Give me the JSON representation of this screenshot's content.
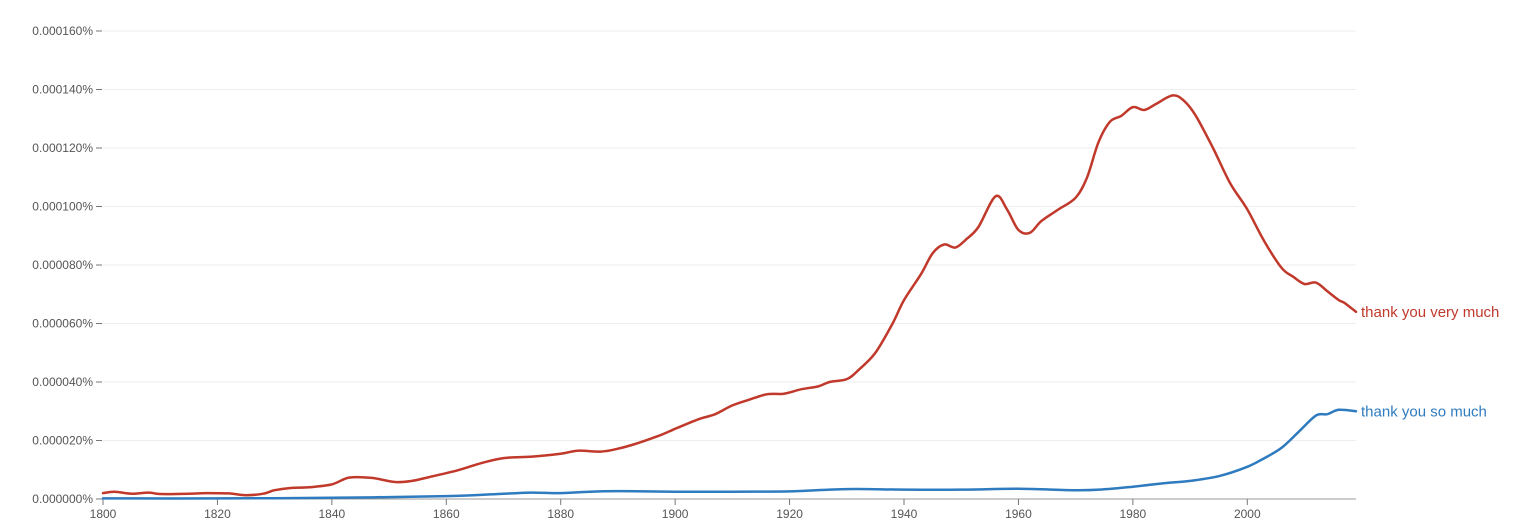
{
  "chart_data": {
    "type": "line",
    "title": "",
    "xlabel": "",
    "ylabel": "",
    "xlim": [
      1800,
      2019
    ],
    "ylim": [
      0,
      0.00016
    ],
    "grid": true,
    "legend": "inline-right-end",
    "x_ticks": [
      1800,
      1820,
      1840,
      1860,
      1880,
      1900,
      1920,
      1940,
      1960,
      1980,
      2000
    ],
    "x_tick_labels": [
      "1800",
      "1820",
      "1840",
      "1860",
      "1880",
      "1900",
      "1920",
      "1940",
      "1960",
      "1980",
      "2000"
    ],
    "y_ticks": [
      0,
      2e-05,
      4e-05,
      6e-05,
      8e-05,
      0.0001,
      0.00012,
      0.00014,
      0.00016
    ],
    "y_tick_labels": [
      "0.000000%",
      "0.000020%",
      "0.000040%",
      "0.000060%",
      "0.000080%",
      "0.000100%",
      "0.000120%",
      "0.000140%",
      "0.000160%"
    ],
    "series": [
      {
        "name": "thank you very much",
        "color": "#c0392b",
        "points": [
          [
            1800,
            2e-06
          ],
          [
            1802,
            2.5e-06
          ],
          [
            1805,
            1.8e-06
          ],
          [
            1808,
            2.2e-06
          ],
          [
            1810,
            1.7e-06
          ],
          [
            1815,
            1.8e-06
          ],
          [
            1818,
            2e-06
          ],
          [
            1822,
            1.9e-06
          ],
          [
            1825,
            1.3e-06
          ],
          [
            1828,
            1.8e-06
          ],
          [
            1830,
            3e-06
          ],
          [
            1833,
            3.8e-06
          ],
          [
            1836,
            4e-06
          ],
          [
            1840,
            5e-06
          ],
          [
            1843,
            7.3e-06
          ],
          [
            1847,
            7.2e-06
          ],
          [
            1851,
            5.8e-06
          ],
          [
            1854,
            6.2e-06
          ],
          [
            1857,
            7.5e-06
          ],
          [
            1862,
            9.8e-06
          ],
          [
            1866,
            1.22e-05
          ],
          [
            1870,
            1.4e-05
          ],
          [
            1875,
            1.45e-05
          ],
          [
            1880,
            1.55e-05
          ],
          [
            1883,
            1.65e-05
          ],
          [
            1887,
            1.62e-05
          ],
          [
            1890,
            1.72e-05
          ],
          [
            1893,
            1.88e-05
          ],
          [
            1897,
            2.15e-05
          ],
          [
            1900,
            2.4e-05
          ],
          [
            1904,
            2.72e-05
          ],
          [
            1907,
            2.9e-05
          ],
          [
            1910,
            3.2e-05
          ],
          [
            1913,
            3.4e-05
          ],
          [
            1916,
            3.58e-05
          ],
          [
            1919,
            3.6e-05
          ],
          [
            1922,
            3.75e-05
          ],
          [
            1925,
            3.85e-05
          ],
          [
            1927,
            4e-05
          ],
          [
            1930,
            4.1e-05
          ],
          [
            1932,
            4.4e-05
          ],
          [
            1935,
            5e-05
          ],
          [
            1938,
            6e-05
          ],
          [
            1940,
            6.8e-05
          ],
          [
            1943,
            7.7e-05
          ],
          [
            1945,
            8.4e-05
          ],
          [
            1947,
            8.7e-05
          ],
          [
            1949,
            8.6e-05
          ],
          [
            1951,
            8.9e-05
          ],
          [
            1953,
            9.3e-05
          ],
          [
            1956,
            0.0001035
          ],
          [
            1958,
            9.9e-05
          ],
          [
            1960,
            9.2e-05
          ],
          [
            1962,
            9.1e-05
          ],
          [
            1964,
            9.5e-05
          ],
          [
            1967,
            9.9e-05
          ],
          [
            1970,
            0.000103
          ],
          [
            1972,
            0.00011
          ],
          [
            1974,
            0.000122
          ],
          [
            1976,
            0.000129
          ],
          [
            1978,
            0.000131
          ],
          [
            1980,
            0.000134
          ],
          [
            1982,
            0.000133
          ],
          [
            1984,
            0.000135
          ],
          [
            1987,
            0.000138
          ],
          [
            1989,
            0.000136
          ],
          [
            1991,
            0.000131
          ],
          [
            1994,
            0.00012
          ],
          [
            1997,
            0.000108
          ],
          [
            2000,
            9.9e-05
          ],
          [
            2003,
            8.8e-05
          ],
          [
            2006,
            7.9e-05
          ],
          [
            2008,
            7.6e-05
          ],
          [
            2010,
            7.35e-05
          ],
          [
            2012,
            7.4e-05
          ],
          [
            2014,
            7.1e-05
          ],
          [
            2016,
            6.8e-05
          ],
          [
            2017,
            6.7e-05
          ],
          [
            2019,
            6.4e-05
          ]
        ]
      },
      {
        "name": "thank you so much",
        "color": "#2e7bbf",
        "points": [
          [
            1800,
            2e-07
          ],
          [
            1820,
            2e-07
          ],
          [
            1840,
            4e-07
          ],
          [
            1860,
            1e-06
          ],
          [
            1870,
            1.8e-06
          ],
          [
            1875,
            2.2e-06
          ],
          [
            1880,
            2e-06
          ],
          [
            1885,
            2.5e-06
          ],
          [
            1890,
            2.7e-06
          ],
          [
            1900,
            2.5e-06
          ],
          [
            1910,
            2.5e-06
          ],
          [
            1920,
            2.6e-06
          ],
          [
            1930,
            3.4e-06
          ],
          [
            1940,
            3.2e-06
          ],
          [
            1950,
            3.2e-06
          ],
          [
            1960,
            3.5e-06
          ],
          [
            1970,
            3e-06
          ],
          [
            1975,
            3.3e-06
          ],
          [
            1980,
            4.2e-06
          ],
          [
            1985,
            5.3e-06
          ],
          [
            1990,
            6.2e-06
          ],
          [
            1995,
            7.8e-06
          ],
          [
            2000,
            1.1e-05
          ],
          [
            2003,
            1.4e-05
          ],
          [
            2006,
            1.75e-05
          ],
          [
            2009,
            2.3e-05
          ],
          [
            2012,
            2.85e-05
          ],
          [
            2014,
            2.9e-05
          ],
          [
            2016,
            3.05e-05
          ],
          [
            2019,
            3e-05
          ]
        ]
      }
    ]
  }
}
